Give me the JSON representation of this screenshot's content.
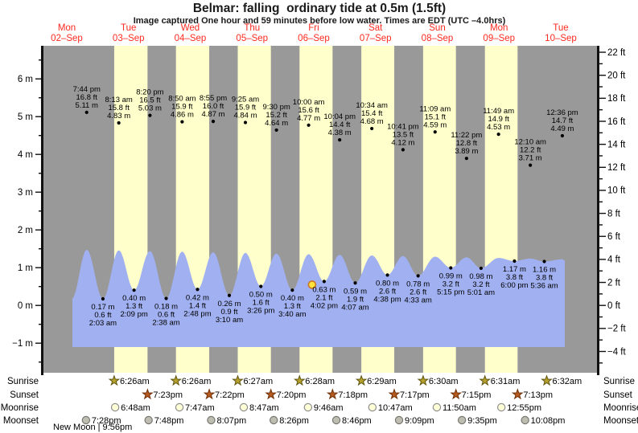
{
  "title": "Belmar: falling  ordinary tide at 0.5m (1.5ft)",
  "subtitle": "Image captured One hour and 59 minutes before low water. Times are EDT (UTC –4.0hrs)",
  "colors": {
    "night_band": "#999999",
    "day_band": "#ffffcc",
    "water": "#a0b0f0",
    "day_label_red": "#ff2a20",
    "annotation_text": "#000000",
    "sunrise_star": "#b5a12c",
    "sunset_star": "#b65a20",
    "moonrise_circle": "#ffffd8",
    "moonset_circle": "#bdbdb2",
    "current_marker_fill": "#ffe23c",
    "current_marker_ring": "#cc7722"
  },
  "chart_data": {
    "type": "area",
    "title": "Belmar: falling  ordinary tide at 0.5m (1.5ft)",
    "x_axis": "days 02-Sep to 10-Sep (EDT)",
    "y_axis_left": {
      "unit": "m",
      "range": [
        -1.8,
        6.9
      ]
    },
    "y_axis_right": {
      "unit": "ft",
      "range": [
        -5.9,
        22.6
      ]
    },
    "days": [
      {
        "name": "Mon",
        "date": "02–Sep"
      },
      {
        "name": "Tue",
        "date": "03–Sep"
      },
      {
        "name": "Wed",
        "date": "04–Sep"
      },
      {
        "name": "Thu",
        "date": "05–Sep"
      },
      {
        "name": "Fri",
        "date": "06–Sep"
      },
      {
        "name": "Sat",
        "date": "07–Sep"
      },
      {
        "name": "Sun",
        "date": "08–Sep"
      },
      {
        "name": "Mon",
        "date": "09–Sep"
      },
      {
        "name": "Tue",
        "date": "10–Sep"
      }
    ],
    "left_ticks": [
      {
        "v": 6,
        "label": "6 m"
      },
      {
        "v": 5,
        "label": "5 m"
      },
      {
        "v": 4,
        "label": "4 m"
      },
      {
        "v": 3,
        "label": "3 m"
      },
      {
        "v": 2,
        "label": "2 m"
      },
      {
        "v": 1,
        "label": "1 m"
      },
      {
        "v": 0,
        "label": "0 m"
      },
      {
        "v": -1,
        "label": "−1 m"
      }
    ],
    "right_ticks": [
      {
        "v": 22,
        "label": "22 ft"
      },
      {
        "v": 20,
        "label": "20 ft"
      },
      {
        "v": 18,
        "label": "18 ft"
      },
      {
        "v": 16,
        "label": "16 ft"
      },
      {
        "v": 14,
        "label": "14 ft"
      },
      {
        "v": 12,
        "label": "12 ft"
      },
      {
        "v": 10,
        "label": "10 ft"
      },
      {
        "v": 8,
        "label": "8 ft"
      },
      {
        "v": 6,
        "label": "6 ft"
      },
      {
        "v": 4,
        "label": "4 ft"
      },
      {
        "v": 2,
        "label": "2 ft"
      },
      {
        "v": 0,
        "label": "0 ft"
      },
      {
        "v": -2,
        "label": "−2 ft"
      },
      {
        "v": -4,
        "label": "−4 ft"
      }
    ],
    "tide_events": [
      {
        "day": 0,
        "date": "02-Sep",
        "type": "high",
        "time": "7:44 pm",
        "ft": "16.8",
        "m": "5.11"
      },
      {
        "day": 1,
        "date": "03-Sep",
        "type": "low",
        "time": "2:03 am",
        "ft": "0.6",
        "m": "0.17"
      },
      {
        "day": 1,
        "date": "03-Sep",
        "type": "high",
        "time": "8:13 am",
        "ft": "15.8",
        "m": "4.83"
      },
      {
        "day": 1,
        "date": "03-Sep",
        "type": "low",
        "time": "2:09 pm",
        "ft": "1.3",
        "m": "0.40"
      },
      {
        "day": 1,
        "date": "03-Sep",
        "type": "high",
        "time": "8:20 pm",
        "ft": "16.5",
        "m": "5.03"
      },
      {
        "day": 2,
        "date": "04-Sep",
        "type": "low",
        "time": "2:38 am",
        "ft": "0.6",
        "m": "0.18"
      },
      {
        "day": 2,
        "date": "04-Sep",
        "type": "high",
        "time": "8:50 am",
        "ft": "15.9",
        "m": "4.86"
      },
      {
        "day": 2,
        "date": "04-Sep",
        "type": "low",
        "time": "2:48 pm",
        "ft": "1.4",
        "m": "0.42"
      },
      {
        "day": 2,
        "date": "04-Sep",
        "type": "high",
        "time": "8:55 pm",
        "ft": "16.0",
        "m": "4.87"
      },
      {
        "day": 3,
        "date": "05-Sep",
        "type": "low",
        "time": "3:10 am",
        "ft": "0.9",
        "m": "0.26"
      },
      {
        "day": 3,
        "date": "05-Sep",
        "type": "high",
        "time": "9:25 am",
        "ft": "15.9",
        "m": "4.84"
      },
      {
        "day": 3,
        "date": "05-Sep",
        "type": "low",
        "time": "3:26 pm",
        "ft": "1.6",
        "m": "0.50"
      },
      {
        "day": 3,
        "date": "05-Sep",
        "type": "high",
        "time": "9:30 pm",
        "ft": "15.2",
        "m": "4.64"
      },
      {
        "day": 4,
        "date": "06-Sep",
        "type": "low",
        "time": "3:40 am",
        "ft": "1.3",
        "m": "0.40"
      },
      {
        "day": 4,
        "date": "06-Sep",
        "type": "high",
        "time": "10:00 am",
        "ft": "15.6",
        "m": "4.77"
      },
      {
        "day": 4,
        "date": "06-Sep",
        "type": "low",
        "time": "4:02 pm",
        "ft": "2.1",
        "m": "0.63",
        "current": true
      },
      {
        "day": 4,
        "date": "06-Sep",
        "type": "high",
        "time": "10:04 pm",
        "ft": "14.4",
        "m": "4.38"
      },
      {
        "day": 5,
        "date": "07-Sep",
        "type": "low",
        "time": "4:07 am",
        "ft": "1.9",
        "m": "0.59"
      },
      {
        "day": 5,
        "date": "07-Sep",
        "type": "high",
        "time": "10:34 am",
        "ft": "15.4",
        "m": "4.68"
      },
      {
        "day": 5,
        "date": "07-Sep",
        "type": "low",
        "time": "4:38 pm",
        "ft": "2.6",
        "m": "0.80"
      },
      {
        "day": 5,
        "date": "07-Sep",
        "type": "high",
        "time": "10:41 pm",
        "ft": "13.5",
        "m": "4.12"
      },
      {
        "day": 6,
        "date": "08-Sep",
        "type": "low",
        "time": "4:33 am",
        "ft": "2.6",
        "m": "0.78"
      },
      {
        "day": 6,
        "date": "08-Sep",
        "type": "high",
        "time": "11:09 am",
        "ft": "15.1",
        "m": "4.59"
      },
      {
        "day": 6,
        "date": "08-Sep",
        "type": "low",
        "time": "5:15 pm",
        "ft": "3.2",
        "m": "0.99"
      },
      {
        "day": 6,
        "date": "08-Sep",
        "type": "high",
        "time": "11:22 pm",
        "ft": "12.8",
        "m": "3.89"
      },
      {
        "day": 7,
        "date": "09-Sep",
        "type": "low",
        "time": "5:01 am",
        "ft": "3.2",
        "m": "0.98"
      },
      {
        "day": 7,
        "date": "09-Sep",
        "type": "high",
        "time": "11:49 am",
        "ft": "14.9",
        "m": "4.53"
      },
      {
        "day": 7,
        "date": "09-Sep",
        "type": "low",
        "time": "6:00 pm",
        "ft": "3.8",
        "m": "1.17"
      },
      {
        "day": 8,
        "date": "10-Sep",
        "type": "high",
        "time": "12:10 am",
        "ft": "12.2",
        "m": "3.71"
      },
      {
        "day": 8,
        "date": "10-Sep",
        "type": "low",
        "time": "5:36 am",
        "ft": "3.8",
        "m": "1.16"
      },
      {
        "day": 8,
        "date": "10-Sep",
        "type": "high",
        "time": "12:36 pm",
        "ft": "14.7",
        "m": "4.49"
      }
    ],
    "astro": {
      "row_labels": [
        "Sunrise",
        "Sunset",
        "Moonrise",
        "Moonset"
      ],
      "sunrise": [
        {
          "day": 1,
          "time": "6:26am"
        },
        {
          "day": 2,
          "time": "6:26am"
        },
        {
          "day": 3,
          "time": "6:27am"
        },
        {
          "day": 4,
          "time": "6:28am"
        },
        {
          "day": 5,
          "time": "6:29am"
        },
        {
          "day": 6,
          "time": "6:30am"
        },
        {
          "day": 7,
          "time": "6:31am"
        },
        {
          "day": 8,
          "time": "6:32am"
        }
      ],
      "sunset": [
        {
          "day": 1,
          "time": "7:23pm"
        },
        {
          "day": 2,
          "time": "7:22pm"
        },
        {
          "day": 3,
          "time": "7:20pm"
        },
        {
          "day": 4,
          "time": "7:18pm"
        },
        {
          "day": 5,
          "time": "7:17pm"
        },
        {
          "day": 6,
          "time": "7:15pm"
        },
        {
          "day": 7,
          "time": "7:13pm"
        }
      ],
      "moonrise": [
        {
          "day": 1,
          "time": "6:48am"
        },
        {
          "day": 2,
          "time": "7:47am"
        },
        {
          "day": 3,
          "time": "8:47am"
        },
        {
          "day": 4,
          "time": "9:46am"
        },
        {
          "day": 5,
          "time": "10:47am"
        },
        {
          "day": 6,
          "time": "11:50am"
        },
        {
          "day": 7,
          "time": "12:55pm"
        }
      ],
      "moonset": [
        {
          "day": 0,
          "time": "7:28pm"
        },
        {
          "day": 1,
          "time": "7:48pm"
        },
        {
          "day": 2,
          "time": "8:07pm"
        },
        {
          "day": 3,
          "time": "8:26pm"
        },
        {
          "day": 4,
          "time": "8:46pm"
        },
        {
          "day": 5,
          "time": "9:09pm"
        },
        {
          "day": 6,
          "time": "9:35pm"
        },
        {
          "day": 7,
          "time": "10:08pm"
        }
      ],
      "new_moon": "New Moon | 9:56pm"
    },
    "current_marker_note": "captured 1h 59m before the 4:02 pm low water"
  }
}
